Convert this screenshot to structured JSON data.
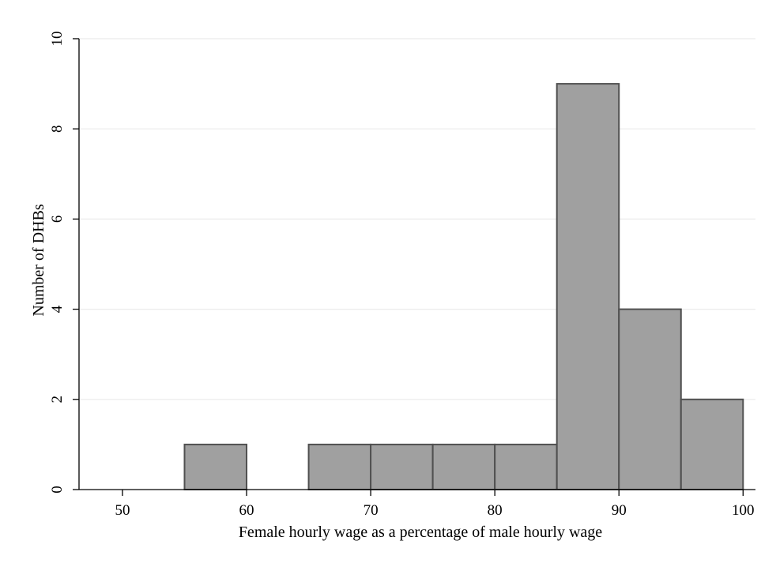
{
  "chart_data": {
    "type": "bar",
    "bins": [
      {
        "x0": 55,
        "x1": 60,
        "count": 1
      },
      {
        "x0": 65,
        "x1": 70,
        "count": 1
      },
      {
        "x0": 70,
        "x1": 75,
        "count": 1
      },
      {
        "x0": 75,
        "x1": 80,
        "count": 1
      },
      {
        "x0": 80,
        "x1": 85,
        "count": 1
      },
      {
        "x0": 85,
        "x1": 90,
        "count": 9
      },
      {
        "x0": 90,
        "x1": 95,
        "count": 4
      },
      {
        "x0": 95,
        "x1": 100,
        "count": 2
      }
    ],
    "title": "",
    "xlabel": "Female hourly wage as a percentage of male hourly wage",
    "ylabel": "Number of DHBs",
    "xticks": [
      "50",
      "60",
      "70",
      "80",
      "90",
      "100"
    ],
    "yticks": [
      "0",
      "2",
      "4",
      "6",
      "8",
      "10"
    ],
    "xlim": [
      46.5,
      101
    ],
    "ylim": [
      0,
      10
    ],
    "grid": true,
    "bar_color": "#a0a0a0",
    "bar_edge_color": "#505050",
    "grid_color": "#eaeaea"
  }
}
